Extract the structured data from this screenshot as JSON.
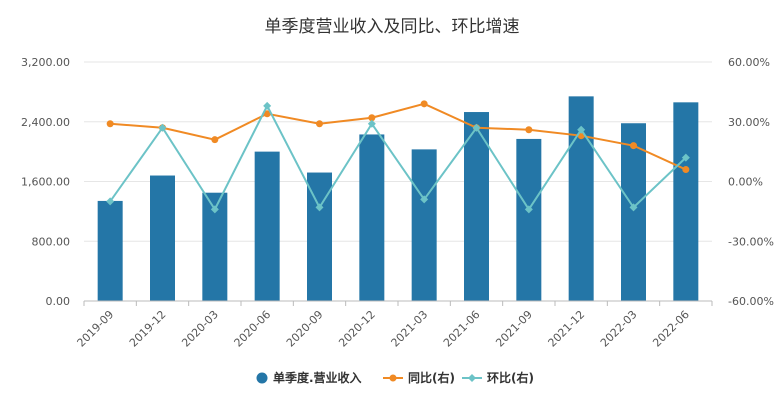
{
  "chart_data": {
    "type": "bar",
    "title": "单季度营业收入及同比、环比增速",
    "categories": [
      "2019-09",
      "2019-12",
      "2020-03",
      "2020-06",
      "2020-09",
      "2020-12",
      "2021-03",
      "2021-06",
      "2021-09",
      "2021-12",
      "2022-03",
      "2022-06"
    ],
    "y_left": {
      "ticks": [
        "0.00",
        "800.00",
        "1,600.00",
        "2,400.00",
        "3,200.00"
      ],
      "ylim": [
        0,
        3200
      ]
    },
    "y_right": {
      "ticks": [
        "-60.00%",
        "-30.00%",
        "0.00%",
        "30.00%",
        "60.00%"
      ],
      "ylim": [
        -60,
        60
      ]
    },
    "series": [
      {
        "name": "单季度.营业收入",
        "kind": "bar",
        "axis": "left",
        "color": "#2476a7",
        "values": [
          1340,
          1680,
          1450,
          2000,
          1720,
          2230,
          2030,
          2530,
          2170,
          2740,
          2380,
          2660
        ]
      },
      {
        "name": "同比(右)",
        "kind": "line",
        "axis": "right",
        "color": "#f08a24",
        "values": [
          29,
          27,
          21,
          34,
          29,
          32,
          39,
          27,
          26,
          23,
          18,
          6
        ]
      },
      {
        "name": "环比(右)",
        "kind": "line",
        "axis": "right",
        "color": "#6cc3c7",
        "values": [
          -10,
          27,
          -14,
          38,
          -13,
          29,
          -9,
          27,
          -14,
          26,
          -13,
          12
        ]
      }
    ],
    "legend_position": "bottom",
    "grid": true
  }
}
